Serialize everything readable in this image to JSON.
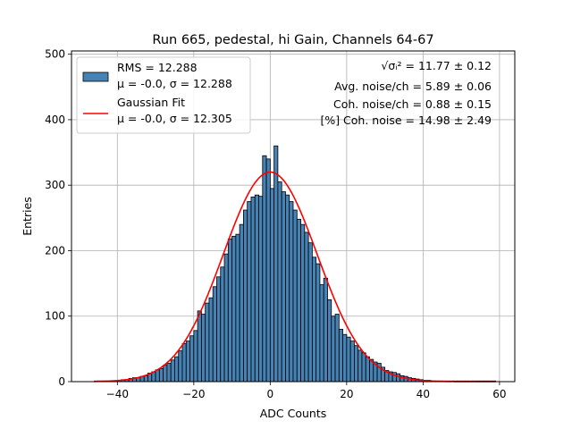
{
  "chart_data": {
    "type": "bar",
    "title": "Run 665, pedestal, hi Gain, Channels 64-67",
    "xlabel": "ADC Counts",
    "ylabel": "Entries",
    "xlim": [
      -52,
      64
    ],
    "ylim": [
      0,
      505
    ],
    "grid": true,
    "x_ticks": [
      -40,
      -20,
      0,
      20,
      40,
      60
    ],
    "y_ticks": [
      0,
      100,
      200,
      300,
      400,
      500
    ],
    "tick_labels": {
      "x": [
        "−40",
        "−20",
        "0",
        "20",
        "40",
        "60"
      ],
      "y": [
        "0",
        "100",
        "200",
        "300",
        "400",
        "500"
      ]
    },
    "histogram": {
      "bin_width": 1,
      "bin_start": -46,
      "counts": [
        1,
        1,
        1,
        1,
        1,
        1,
        2,
        3,
        3,
        5,
        6,
        6,
        8,
        9,
        13,
        15,
        18,
        20,
        25,
        28,
        33,
        38,
        47,
        58,
        62,
        70,
        78,
        108,
        103,
        120,
        128,
        145,
        160,
        175,
        195,
        218,
        222,
        225,
        240,
        262,
        275,
        282,
        285,
        283,
        345,
        340,
        295,
        360,
        305,
        290,
        285,
        275,
        262,
        248,
        240,
        228,
        212,
        190,
        180,
        148,
        158,
        125,
        100,
        103,
        80,
        72,
        68,
        62,
        55,
        48,
        44,
        38,
        34,
        30,
        28,
        22,
        17,
        15,
        14,
        12,
        9,
        8,
        6,
        5,
        4,
        3,
        2,
        2,
        1,
        1,
        1,
        1,
        1,
        1,
        1,
        1,
        1,
        1,
        1,
        1,
        1,
        1,
        1,
        1,
        1
      ],
      "fill_color": "#4682b4",
      "edge_color": "#000000"
    },
    "series": [
      {
        "name": "Gaussian Fit",
        "type": "line",
        "color": "#ff0000",
        "mu": -0.0,
        "sigma": 12.305,
        "amplitude": 320,
        "x_range": [
          -46,
          59
        ]
      }
    ],
    "legend": {
      "location": "top-left",
      "entries": [
        {
          "line1": "RMS = 12.288",
          "line2": "μ = -0.0, σ = 12.288",
          "marker": "patch",
          "color": "#4682b4"
        },
        {
          "line1": "Gaussian Fit",
          "line2": "μ = -0.0, σ = 12.305",
          "marker": "line",
          "color": "#ff0000"
        }
      ]
    },
    "annotations": [
      {
        "sqrt_label": "√σᵢ²",
        "text": " = 11.77 ± 0.12"
      },
      {
        "text": "Avg. noise/ch = 5.89 ± 0.06"
      },
      {
        "text": "Coh. noise/ch = 0.88 ± 0.15"
      },
      {
        "text": "[%] Coh. noise = 14.98 ± 2.49"
      }
    ]
  }
}
